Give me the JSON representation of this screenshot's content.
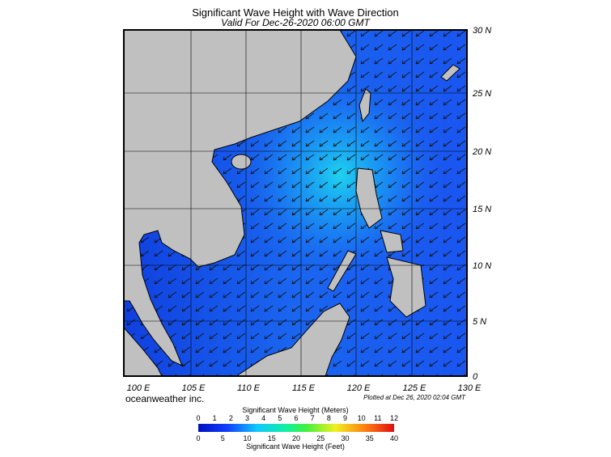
{
  "header": {
    "title": "Significant Wave Height with Wave Direction",
    "subtitle": "Valid For Dec-26-2020 06:00 GMT"
  },
  "map": {
    "lat_labels": [
      "30 N",
      "25 N",
      "20 N",
      "15 N",
      "10 N",
      "5 N",
      "0"
    ],
    "lon_labels": [
      "100 E",
      "105 E",
      "110 E",
      "115 E",
      "120 E",
      "125 E",
      "130 E"
    ]
  },
  "footer": {
    "credit": "oceanweather inc.",
    "plotted": "Plotted at Dec 26, 2020 02:04 GMT"
  },
  "legend": {
    "meters_title": "Significant Wave Height (Meters)",
    "meters_ticks": [
      0,
      1,
      2,
      3,
      4,
      5,
      6,
      7,
      8,
      9,
      10,
      11,
      12
    ],
    "feet_ticks": [
      0,
      5,
      10,
      15,
      20,
      25,
      30,
      35,
      40
    ],
    "feet_title": "Significant Wave Height (Feet)"
  }
}
